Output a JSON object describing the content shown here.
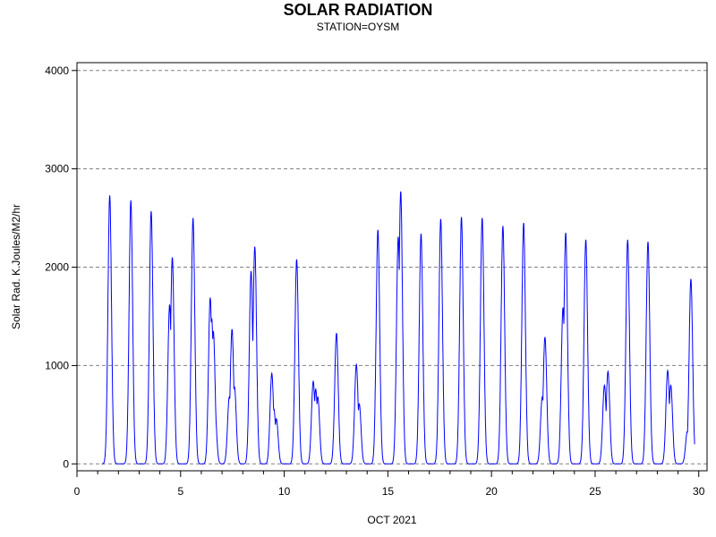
{
  "chart_data": {
    "type": "line",
    "title": "SOLAR RADIATION",
    "subtitle": "STATION=OYSM",
    "xlabel": "OCT 2021",
    "ylabel": "Solar Rad. K.Joules/M2/hr",
    "xlim": [
      0,
      30.4
    ],
    "ylim": [
      -70,
      4080
    ],
    "x_ticks": [
      0,
      5,
      10,
      15,
      20,
      25,
      30
    ],
    "x_minor_step": 1,
    "y_ticks": [
      0,
      1000,
      2000,
      3000,
      4000
    ],
    "grid": "horizontal-dashed",
    "line_color": "#0000ff",
    "data_start": 1.2,
    "data_end": 29.8,
    "daily_peaks": [
      {
        "day": 1,
        "peaks": [
          [
            1.58,
            2730
          ]
        ]
      },
      {
        "day": 2,
        "peaks": [
          [
            2.6,
            2680
          ]
        ]
      },
      {
        "day": 3,
        "peaks": [
          [
            3.58,
            2570
          ]
        ]
      },
      {
        "day": 4,
        "peaks": [
          [
            4.47,
            1620
          ],
          [
            4.6,
            2100
          ]
        ]
      },
      {
        "day": 5,
        "peaks": [
          [
            5.6,
            2500
          ]
        ]
      },
      {
        "day": 6,
        "peaks": [
          [
            6.43,
            1690
          ],
          [
            6.5,
            1480
          ],
          [
            6.58,
            1350
          ],
          [
            6.65,
            560
          ]
        ]
      },
      {
        "day": 7,
        "peaks": [
          [
            7.35,
            680
          ],
          [
            7.48,
            1370
          ],
          [
            7.6,
            780
          ]
        ]
      },
      {
        "day": 8,
        "peaks": [
          [
            8.4,
            1960
          ],
          [
            8.58,
            2210
          ]
        ]
      },
      {
        "day": 9,
        "peaks": [
          [
            9.4,
            920
          ],
          [
            9.5,
            560
          ],
          [
            9.62,
            460
          ]
        ]
      },
      {
        "day": 10,
        "peaks": [
          [
            10.6,
            2080
          ]
        ]
      },
      {
        "day": 11,
        "peaks": [
          [
            11.4,
            840
          ],
          [
            11.52,
            760
          ],
          [
            11.62,
            680
          ]
        ]
      },
      {
        "day": 12,
        "peaks": [
          [
            12.52,
            1330
          ]
        ]
      },
      {
        "day": 13,
        "peaks": [
          [
            13.48,
            1010
          ],
          [
            13.62,
            610
          ]
        ]
      },
      {
        "day": 14,
        "peaks": [
          [
            14.52,
            2380
          ]
        ]
      },
      {
        "day": 15,
        "peaks": [
          [
            15.5,
            2310
          ],
          [
            15.62,
            2770
          ]
        ]
      },
      {
        "day": 16,
        "peaks": [
          [
            16.6,
            2340
          ]
        ]
      },
      {
        "day": 17,
        "peaks": [
          [
            17.55,
            2490
          ]
        ]
      },
      {
        "day": 18,
        "peaks": [
          [
            18.55,
            2510
          ]
        ]
      },
      {
        "day": 19,
        "peaks": [
          [
            19.55,
            2500
          ]
        ]
      },
      {
        "day": 20,
        "peaks": [
          [
            20.55,
            2420
          ]
        ]
      },
      {
        "day": 21,
        "peaks": [
          [
            21.55,
            2450
          ]
        ]
      },
      {
        "day": 22,
        "peaks": [
          [
            22.45,
            680
          ],
          [
            22.58,
            1290
          ]
        ]
      },
      {
        "day": 23,
        "peaks": [
          [
            23.45,
            1590
          ],
          [
            23.58,
            2350
          ]
        ]
      },
      {
        "day": 24,
        "peaks": [
          [
            24.55,
            2280
          ]
        ]
      },
      {
        "day": 25,
        "peaks": [
          [
            25.45,
            800
          ],
          [
            25.62,
            940
          ]
        ]
      },
      {
        "day": 26,
        "peaks": [
          [
            26.57,
            2280
          ]
        ]
      },
      {
        "day": 27,
        "peaks": [
          [
            27.55,
            2260
          ]
        ]
      },
      {
        "day": 28,
        "peaks": [
          [
            28.5,
            950
          ],
          [
            28.65,
            800
          ]
        ]
      },
      {
        "day": 29,
        "peaks": [
          [
            29.45,
            330
          ],
          [
            29.62,
            1880
          ]
        ]
      }
    ]
  }
}
